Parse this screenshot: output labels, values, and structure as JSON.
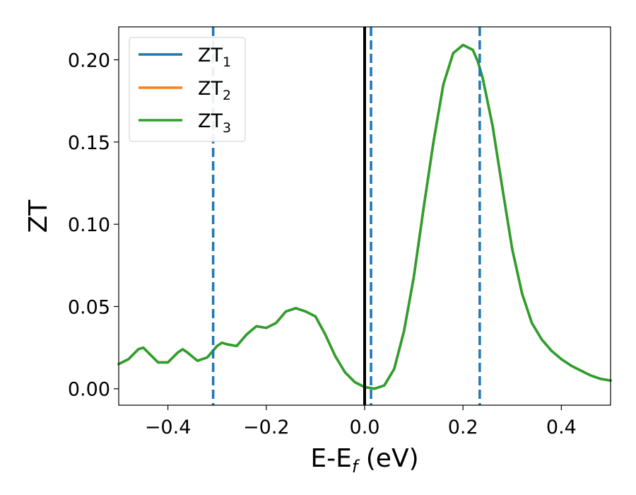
{
  "chart_data": {
    "type": "line",
    "xlabel": {
      "base": "E-E",
      "sub": "f",
      "tail": " (eV)"
    },
    "ylabel": "ZT",
    "xlim": [
      -0.5,
      0.5
    ],
    "ylim": [
      -0.01,
      0.22
    ],
    "xticks": [
      -0.4,
      -0.2,
      0.0,
      0.2,
      0.4
    ],
    "xtick_labels": [
      "−0.4",
      "−0.2",
      "0.0",
      "0.2",
      "0.4"
    ],
    "yticks": [
      0.0,
      0.05,
      0.1,
      0.15,
      0.2
    ],
    "ytick_labels": [
      "0.00",
      "0.05",
      "0.10",
      "0.15",
      "0.20"
    ],
    "grid": false,
    "legend_position": "top-left",
    "vlines": [
      {
        "x": 0.0,
        "style": "solid",
        "color": "#000000"
      },
      {
        "x": -0.308,
        "style": "dashed",
        "color": "#1f77b4"
      },
      {
        "x": 0.013,
        "style": "dashed",
        "color": "#1f77b4"
      },
      {
        "x": 0.234,
        "style": "dashed",
        "color": "#1f77b4"
      }
    ],
    "series": [
      {
        "name": "ZT",
        "sub": "1",
        "color": "#1f77b4"
      },
      {
        "name": "ZT",
        "sub": "2",
        "color": "#ff7f0e"
      },
      {
        "name": "ZT",
        "sub": "3",
        "color": "#2ca02c"
      }
    ],
    "x": [
      -0.5,
      -0.48,
      -0.46,
      -0.45,
      -0.44,
      -0.42,
      -0.4,
      -0.38,
      -0.37,
      -0.36,
      -0.34,
      -0.32,
      -0.3,
      -0.29,
      -0.28,
      -0.26,
      -0.24,
      -0.22,
      -0.2,
      -0.18,
      -0.16,
      -0.14,
      -0.13,
      -0.12,
      -0.1,
      -0.08,
      -0.06,
      -0.04,
      -0.02,
      0.0,
      0.02,
      0.04,
      0.06,
      0.08,
      0.1,
      0.12,
      0.14,
      0.16,
      0.18,
      0.2,
      0.22,
      0.23,
      0.24,
      0.26,
      0.28,
      0.3,
      0.32,
      0.34,
      0.36,
      0.38,
      0.4,
      0.42,
      0.44,
      0.46,
      0.48,
      0.5
    ],
    "y": [
      0.015,
      0.018,
      0.024,
      0.025,
      0.022,
      0.016,
      0.016,
      0.022,
      0.024,
      0.022,
      0.017,
      0.019,
      0.026,
      0.028,
      0.027,
      0.026,
      0.033,
      0.038,
      0.037,
      0.04,
      0.047,
      0.049,
      0.048,
      0.047,
      0.044,
      0.033,
      0.02,
      0.01,
      0.004,
      0.001,
      0.0,
      0.002,
      0.012,
      0.035,
      0.068,
      0.11,
      0.15,
      0.185,
      0.204,
      0.209,
      0.206,
      0.199,
      0.189,
      0.16,
      0.122,
      0.085,
      0.058,
      0.04,
      0.03,
      0.023,
      0.018,
      0.014,
      0.011,
      0.008,
      0.006,
      0.005
    ]
  }
}
